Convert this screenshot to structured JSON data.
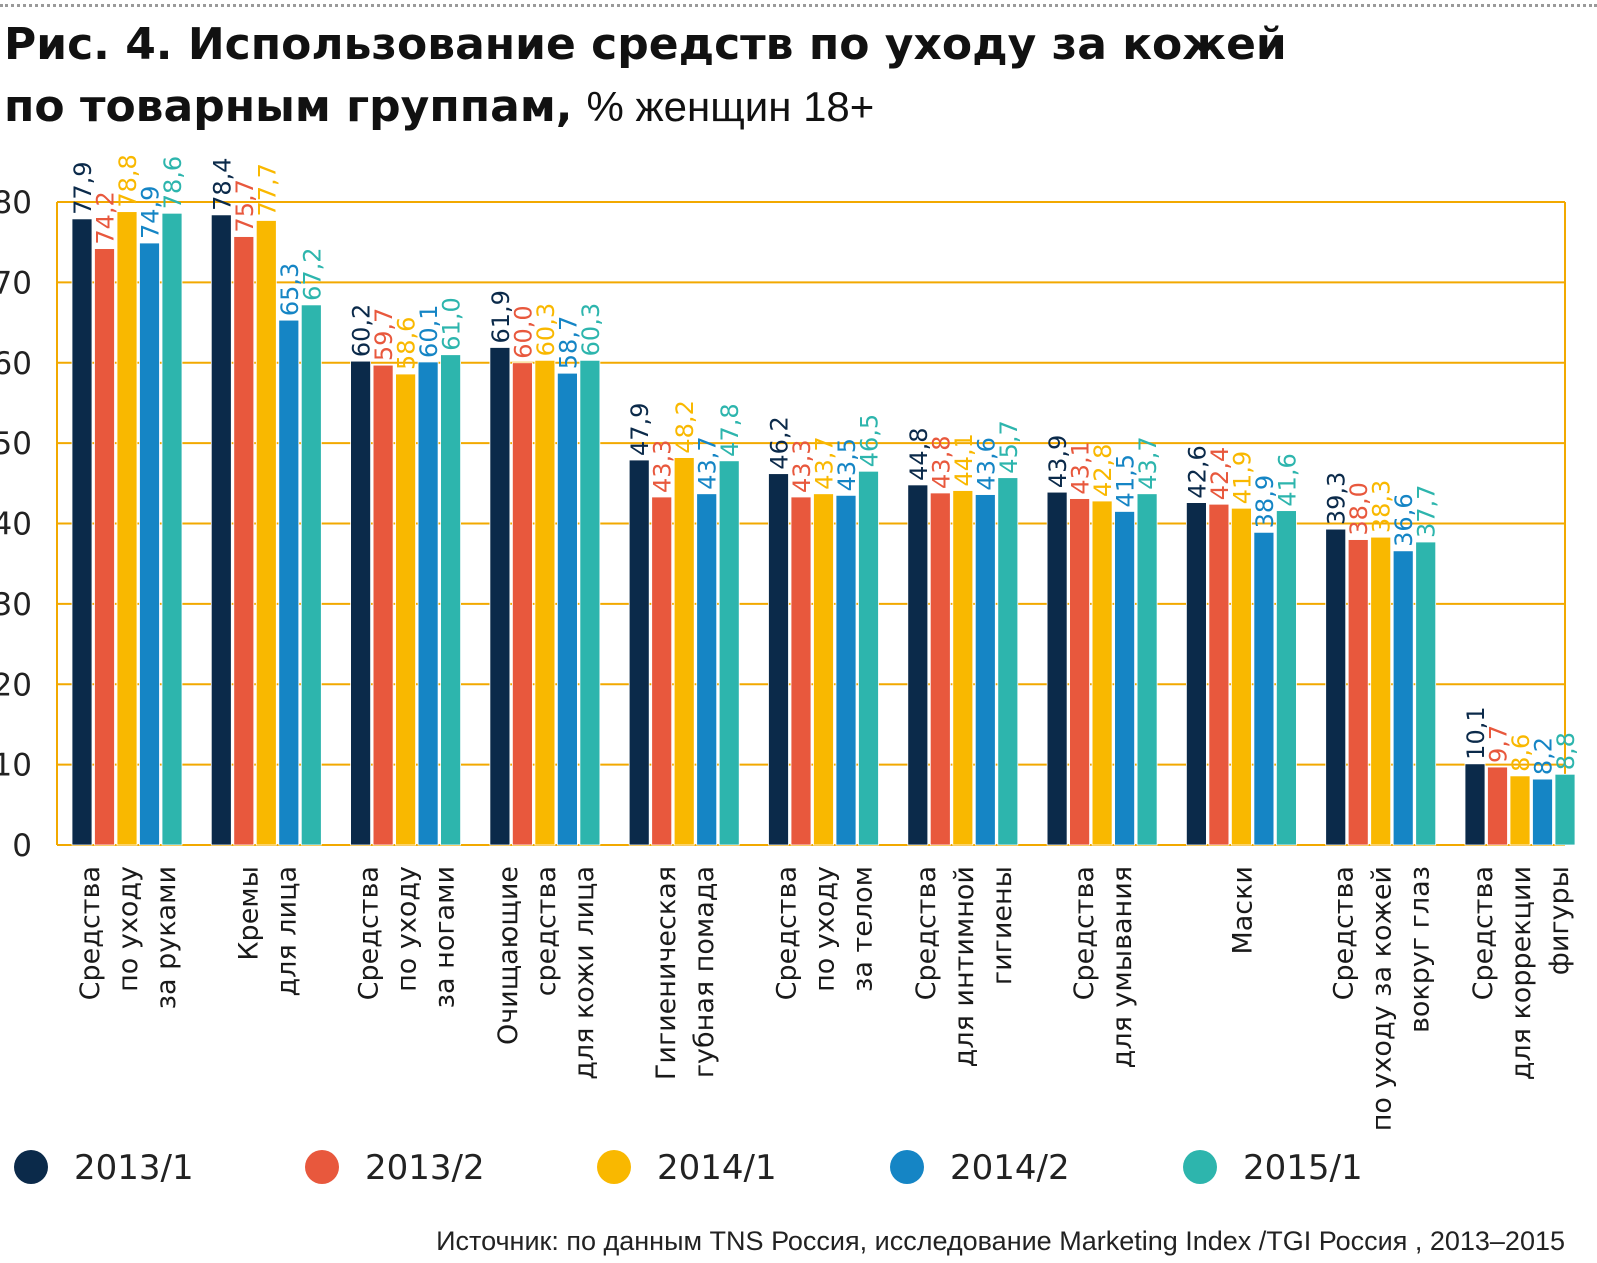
{
  "title_line1": "Рис. 4. Использование средств по уходу за кожей",
  "title_line2": "по товарным группам,",
  "title_unit": "% женщин 18+",
  "source": "Источник: по данным TNS Россия, исследование Marketing Index /TGI Россия , 2013–2015",
  "colors": {
    "grid": "#f2a900",
    "axis": "#f2a900",
    "series": [
      "#0b2a4a",
      "#e8583d",
      "#f9b800",
      "#1585c5",
      "#2db5ad"
    ]
  },
  "chart_data": {
    "type": "bar",
    "ylim": [
      0,
      80
    ],
    "yticks": [
      "0",
      "10",
      "20",
      "30",
      "40",
      "50",
      "60",
      "70",
      "80"
    ],
    "grid": true,
    "legend_position": "bottom",
    "categories": [
      [
        "Средства",
        "по уходу",
        "за руками"
      ],
      [
        "Кремы",
        "для лица"
      ],
      [
        "Средства",
        "по уходу",
        "за ногами"
      ],
      [
        "Очищающие",
        "средства",
        "для кожи лица"
      ],
      [
        "Гигиеническая",
        "губная помада"
      ],
      [
        "Средства",
        "по уходу",
        "за телом"
      ],
      [
        "Средства",
        "для интимной",
        "гигиены"
      ],
      [
        "Средства",
        "для умывания"
      ],
      [
        "Маски"
      ],
      [
        "Средства",
        "по уходу за кожей",
        "вокруг глаз"
      ],
      [
        "Средства",
        "для коррекции",
        "фигуры"
      ]
    ],
    "series": [
      {
        "name": "2013/1",
        "values": [
          77.9,
          78.4,
          60.2,
          61.9,
          47.9,
          46.2,
          44.8,
          43.9,
          42.6,
          39.3,
          10.1
        ],
        "labels": [
          "77,9",
          "78,4",
          "60,2",
          "61,9",
          "47,9",
          "46,2",
          "44,8",
          "43,9",
          "42,6",
          "39,3",
          "10,1"
        ]
      },
      {
        "name": "2013/2",
        "values": [
          74.2,
          75.7,
          59.7,
          60.0,
          43.3,
          43.3,
          43.8,
          43.1,
          42.4,
          38.0,
          9.7
        ],
        "labels": [
          "74,2",
          "75,7",
          "59,7",
          "60,0",
          "43,3",
          "43,3",
          "43,8",
          "43,1",
          "42,4",
          "38,0",
          "9,7"
        ]
      },
      {
        "name": "2014/1",
        "values": [
          78.8,
          77.7,
          58.6,
          60.3,
          48.2,
          43.7,
          44.1,
          42.8,
          41.9,
          38.3,
          8.6
        ],
        "labels": [
          "78,8",
          "77,7",
          "58,6",
          "60,3",
          "48,2",
          "43,7",
          "44,1",
          "42,8",
          "41,9",
          "38,3",
          "8,6"
        ]
      },
      {
        "name": "2014/2",
        "values": [
          74.9,
          65.3,
          60.1,
          58.7,
          43.7,
          43.5,
          43.6,
          41.5,
          38.9,
          36.6,
          8.2
        ],
        "labels": [
          "74,9",
          "65,3",
          "60,1",
          "58,7",
          "43,7",
          "43,5",
          "43,6",
          "41,5",
          "38,9",
          "36,6",
          "8,2"
        ]
      },
      {
        "name": "2015/1",
        "values": [
          78.6,
          67.2,
          61.0,
          60.3,
          47.8,
          46.5,
          45.7,
          43.7,
          41.6,
          37.7,
          8.8
        ],
        "labels": [
          "78,6",
          "67,2",
          "61,0",
          "60,3",
          "47,8",
          "46,5",
          "45,7",
          "43,7",
          "41,6",
          "37,7",
          "8,8"
        ]
      }
    ]
  }
}
